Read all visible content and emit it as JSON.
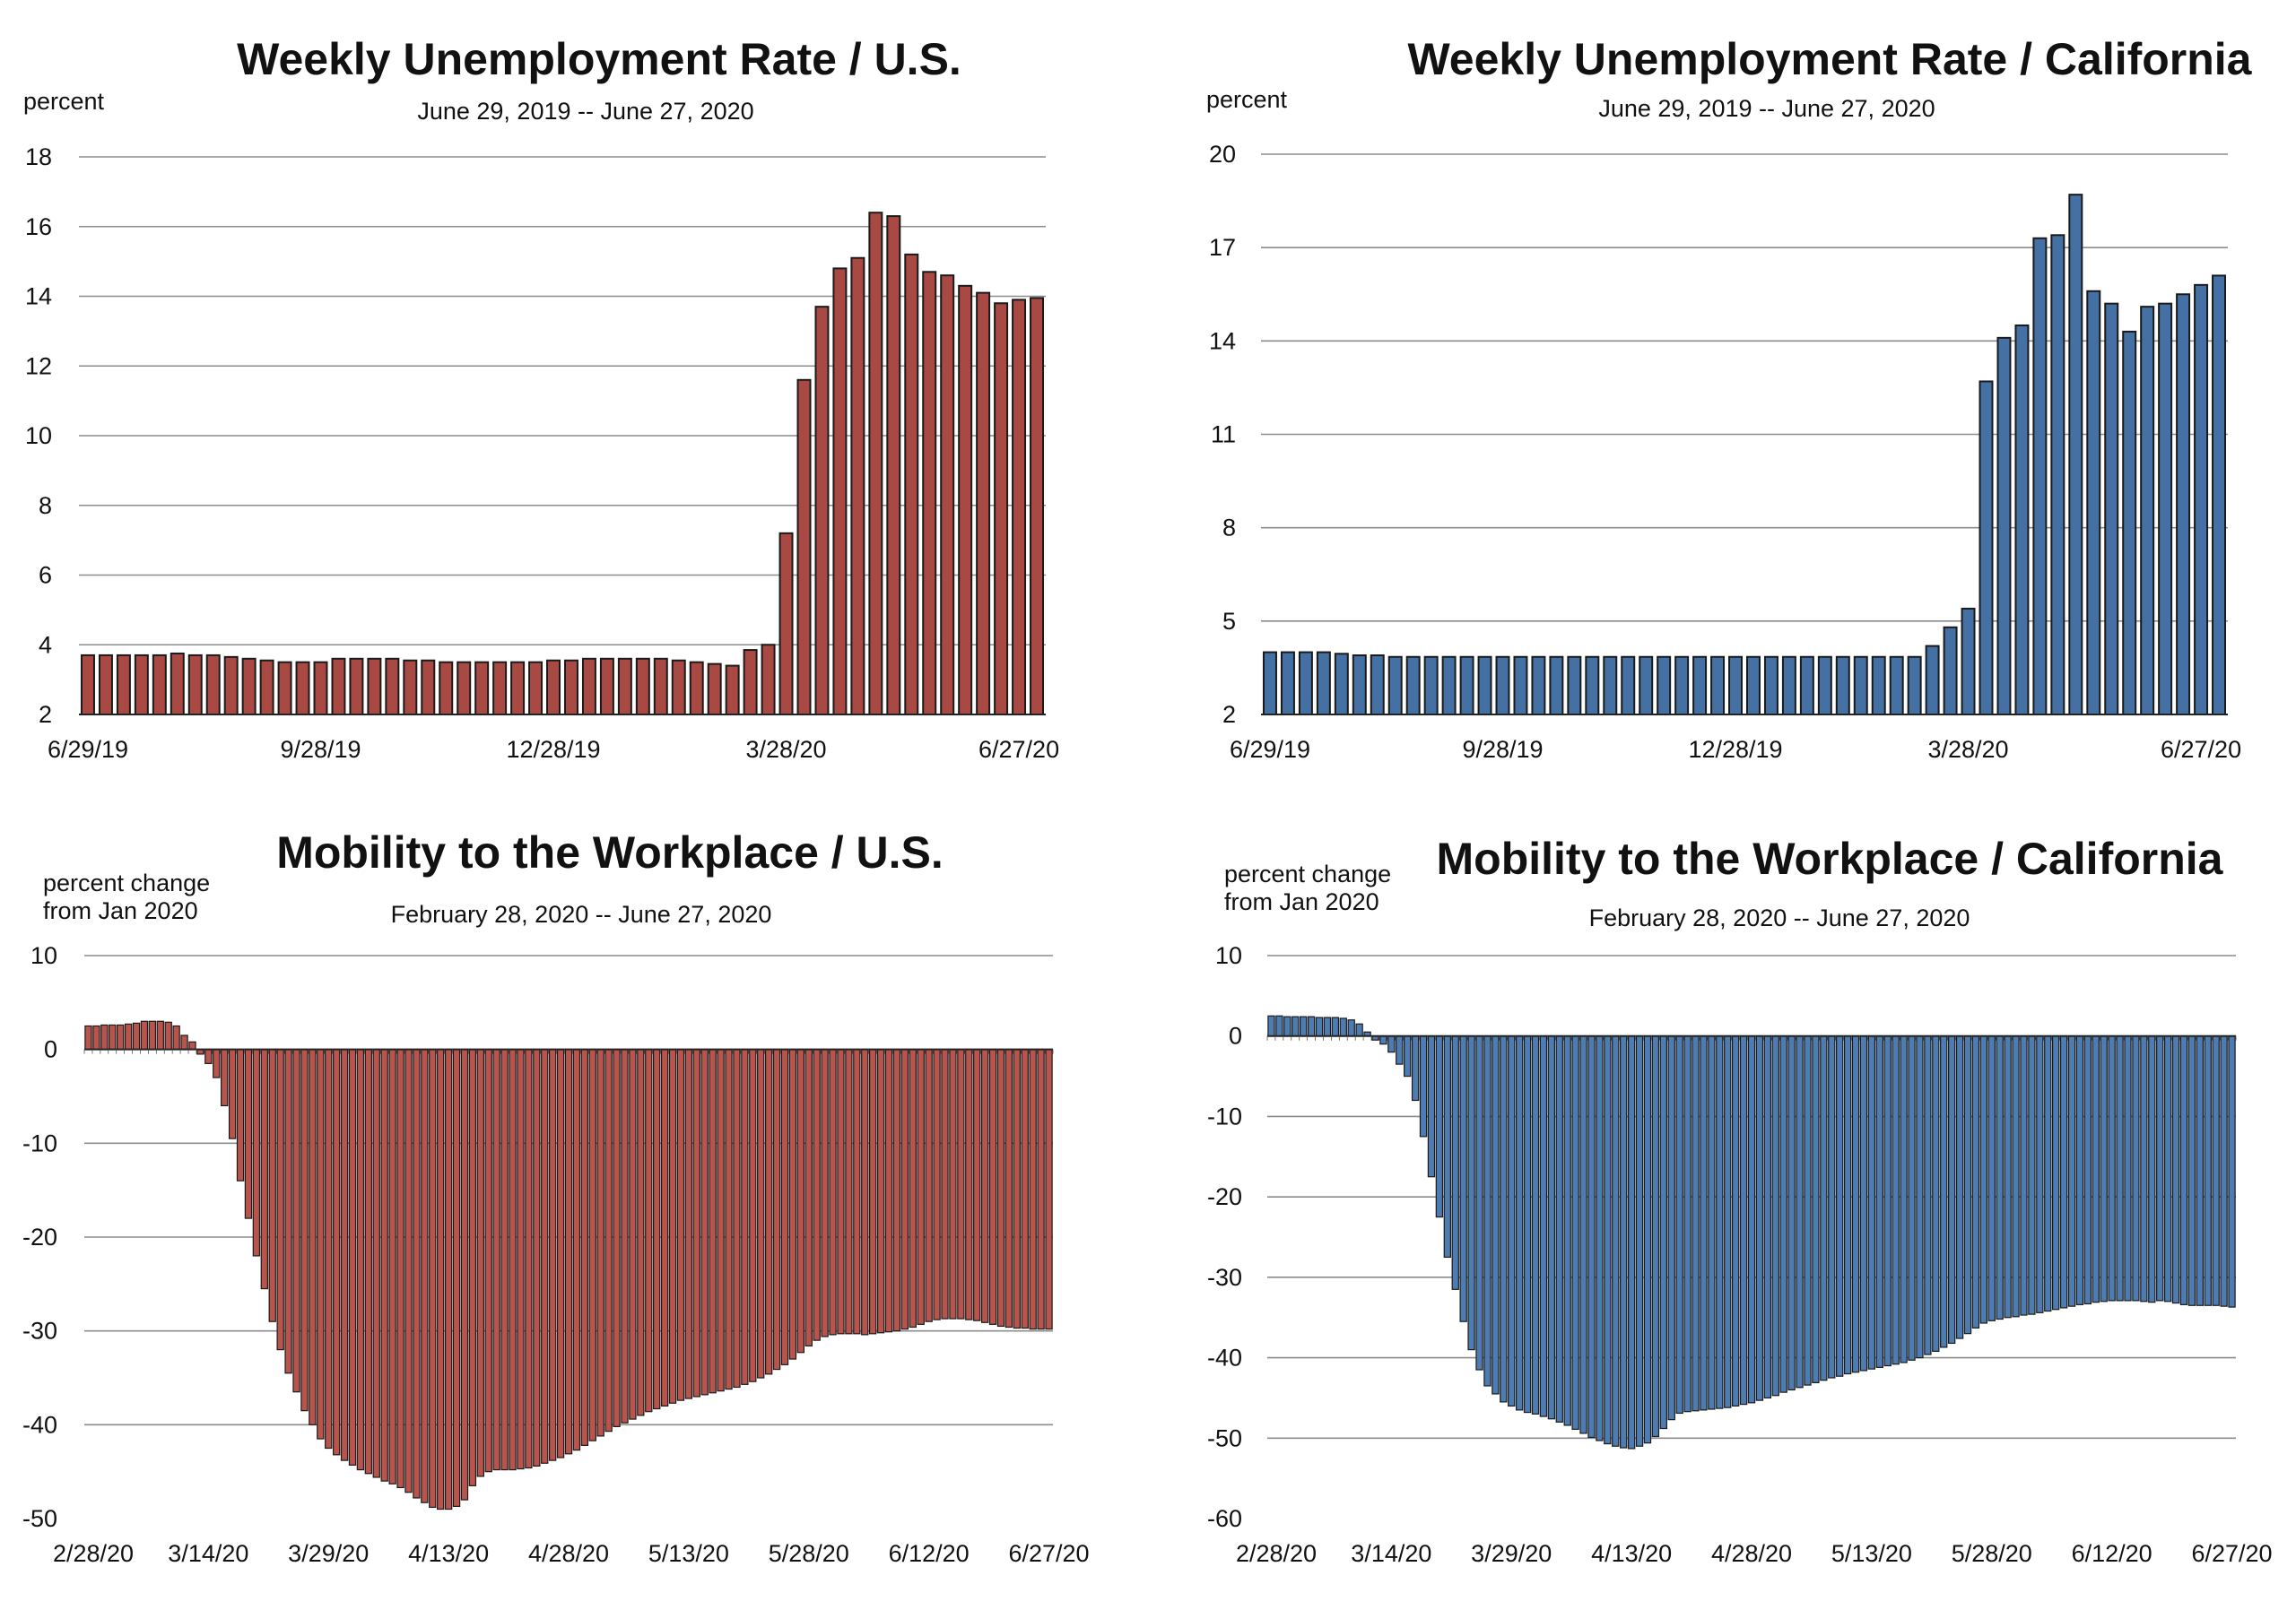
{
  "chart_data": [
    {
      "type": "bar",
      "title": "Weekly Unemployment Rate / U.S.",
      "subtitle": "June 29, 2019 -- June 27, 2020",
      "ylabel": "percent",
      "ylim": [
        2,
        18
      ],
      "yticks": [
        2,
        4,
        6,
        8,
        10,
        12,
        14,
        16,
        18
      ],
      "xtick_labels": [
        "6/29/19",
        "9/28/19",
        "12/28/19",
        "3/28/20",
        "6/27/20"
      ],
      "xtick_index": [
        0,
        13,
        26,
        39,
        52
      ],
      "grid": true,
      "color": "#a84a43",
      "values": [
        3.7,
        3.7,
        3.7,
        3.7,
        3.7,
        3.75,
        3.7,
        3.7,
        3.65,
        3.6,
        3.55,
        3.5,
        3.5,
        3.5,
        3.6,
        3.6,
        3.6,
        3.6,
        3.55,
        3.55,
        3.5,
        3.5,
        3.5,
        3.5,
        3.5,
        3.5,
        3.55,
        3.55,
        3.6,
        3.6,
        3.6,
        3.6,
        3.6,
        3.55,
        3.5,
        3.45,
        3.4,
        3.85,
        4.0,
        7.2,
        11.6,
        13.7,
        14.8,
        15.1,
        16.4,
        16.3,
        15.2,
        14.7,
        14.6,
        14.3,
        14.1,
        13.8,
        13.9,
        13.95
      ]
    },
    {
      "type": "bar",
      "title": "Weekly Unemployment Rate / California",
      "subtitle": "June 29, 2019 -- June 27, 2020",
      "ylabel": "percent",
      "ylim": [
        2,
        20
      ],
      "yticks": [
        2,
        5,
        8,
        11,
        14,
        17,
        20
      ],
      "xtick_labels": [
        "6/29/19",
        "9/28/19",
        "12/28/19",
        "3/28/20",
        "6/27/20"
      ],
      "xtick_index": [
        0,
        13,
        26,
        39,
        52
      ],
      "grid": true,
      "color": "#4470a3",
      "values": [
        4.0,
        4.0,
        4.0,
        4.0,
        3.95,
        3.9,
        3.9,
        3.85,
        3.85,
        3.85,
        3.85,
        3.85,
        3.85,
        3.85,
        3.85,
        3.85,
        3.85,
        3.85,
        3.85,
        3.85,
        3.85,
        3.85,
        3.85,
        3.85,
        3.85,
        3.85,
        3.85,
        3.85,
        3.85,
        3.85,
        3.85,
        3.85,
        3.85,
        3.85,
        3.85,
        3.85,
        3.85,
        4.2,
        4.8,
        5.4,
        12.7,
        14.1,
        14.5,
        17.3,
        17.4,
        18.7,
        15.6,
        15.2,
        14.3,
        15.1,
        15.2,
        15.5,
        15.8,
        16.1
      ]
    },
    {
      "type": "bar",
      "title": "Mobility to the Workplace / U.S.",
      "subtitle": "February 28, 2020 -- June 27, 2020",
      "ylabel": "percent change\nfrom Jan 2020",
      "ylim": [
        -50,
        10
      ],
      "yticks": [
        -50,
        -40,
        -30,
        -20,
        -10,
        0,
        10
      ],
      "xtick_labels": [
        "2/28/20",
        "3/14/20",
        "3/29/20",
        "4/13/20",
        "4/28/20",
        "5/13/20",
        "5/28/20",
        "6/12/20",
        "6/27/20"
      ],
      "xtick_index": [
        0,
        15,
        30,
        45,
        60,
        75,
        90,
        105,
        120
      ],
      "grid": true,
      "color": "#b9544c",
      "values": [
        2.5,
        2.5,
        2.6,
        2.6,
        2.6,
        2.7,
        2.8,
        3.0,
        3.0,
        3.0,
        2.9,
        2.5,
        1.5,
        0.8,
        -0.5,
        -1.5,
        -3.0,
        -6.0,
        -9.5,
        -14.0,
        -18.0,
        -22.0,
        -25.5,
        -29.0,
        -32.0,
        -34.5,
        -36.5,
        -38.5,
        -40.0,
        -41.5,
        -42.5,
        -43.2,
        -43.8,
        -44.3,
        -44.8,
        -45.2,
        -45.6,
        -46.0,
        -46.3,
        -46.7,
        -47.2,
        -47.8,
        -48.3,
        -48.8,
        -49.0,
        -49.0,
        -48.7,
        -48.0,
        -46.5,
        -45.5,
        -45.0,
        -44.8,
        -44.8,
        -44.8,
        -44.7,
        -44.6,
        -44.4,
        -44.1,
        -43.8,
        -43.5,
        -43.1,
        -42.7,
        -42.2,
        -41.7,
        -41.2,
        -40.7,
        -40.2,
        -39.8,
        -39.4,
        -39.0,
        -38.6,
        -38.3,
        -38.0,
        -37.7,
        -37.4,
        -37.2,
        -37.0,
        -36.8,
        -36.6,
        -36.4,
        -36.2,
        -36.0,
        -35.7,
        -35.4,
        -35.0,
        -34.6,
        -34.1,
        -33.6,
        -33.0,
        -32.3,
        -31.6,
        -31.0,
        -30.6,
        -30.4,
        -30.3,
        -30.3,
        -30.3,
        -30.4,
        -30.3,
        -30.2,
        -30.1,
        -30.0,
        -29.8,
        -29.6,
        -29.3,
        -29.0,
        -28.8,
        -28.7,
        -28.7,
        -28.7,
        -28.8,
        -28.9,
        -29.1,
        -29.3,
        -29.5,
        -29.6,
        -29.7,
        -29.7,
        -29.8,
        -29.8,
        -29.8
      ]
    },
    {
      "type": "bar",
      "title": "Mobility to the Workplace / California",
      "subtitle": "February 28, 2020 -- June 27, 2020",
      "ylabel": "percent change\nfrom Jan 2020",
      "ylim": [
        -60,
        10
      ],
      "yticks": [
        -60,
        -50,
        -40,
        -30,
        -20,
        -10,
        0,
        10
      ],
      "xtick_labels": [
        "2/28/20",
        "3/14/20",
        "3/29/20",
        "4/13/20",
        "4/28/20",
        "5/13/20",
        "5/28/20",
        "6/12/20",
        "6/27/20"
      ],
      "xtick_index": [
        0,
        15,
        30,
        45,
        60,
        75,
        90,
        105,
        120
      ],
      "grid": true,
      "color": "#4d7cb3",
      "values": [
        2.5,
        2.5,
        2.4,
        2.4,
        2.4,
        2.4,
        2.3,
        2.3,
        2.3,
        2.2,
        2.0,
        1.5,
        0.5,
        -0.5,
        -1.0,
        -2.0,
        -3.5,
        -5.0,
        -8.0,
        -12.5,
        -17.5,
        -22.5,
        -27.5,
        -31.5,
        -35.5,
        -39.0,
        -41.5,
        -43.5,
        -44.5,
        -45.5,
        -46.0,
        -46.5,
        -46.8,
        -47.0,
        -47.3,
        -47.6,
        -48.0,
        -48.4,
        -48.9,
        -49.4,
        -49.9,
        -50.3,
        -50.7,
        -51.0,
        -51.2,
        -51.3,
        -51.0,
        -50.6,
        -49.8,
        -48.8,
        -47.7,
        -46.9,
        -46.7,
        -46.6,
        -46.5,
        -46.4,
        -46.3,
        -46.2,
        -46.0,
        -45.8,
        -45.6,
        -45.3,
        -45.0,
        -44.7,
        -44.3,
        -44.0,
        -43.7,
        -43.4,
        -43.1,
        -42.8,
        -42.5,
        -42.3,
        -42.0,
        -41.8,
        -41.6,
        -41.4,
        -41.2,
        -41.0,
        -40.8,
        -40.6,
        -40.3,
        -40.0,
        -39.6,
        -39.2,
        -38.7,
        -38.2,
        -37.6,
        -37.0,
        -36.3,
        -35.7,
        -35.4,
        -35.2,
        -35.0,
        -34.9,
        -34.7,
        -34.6,
        -34.4,
        -34.2,
        -34.0,
        -33.8,
        -33.6,
        -33.4,
        -33.3,
        -33.1,
        -33.0,
        -32.9,
        -32.9,
        -32.9,
        -32.9,
        -33.0,
        -33.1,
        -32.9,
        -33.0,
        -33.2,
        -33.4,
        -33.5,
        -33.5,
        -33.5,
        -33.5,
        -33.6,
        -33.7
      ]
    }
  ]
}
